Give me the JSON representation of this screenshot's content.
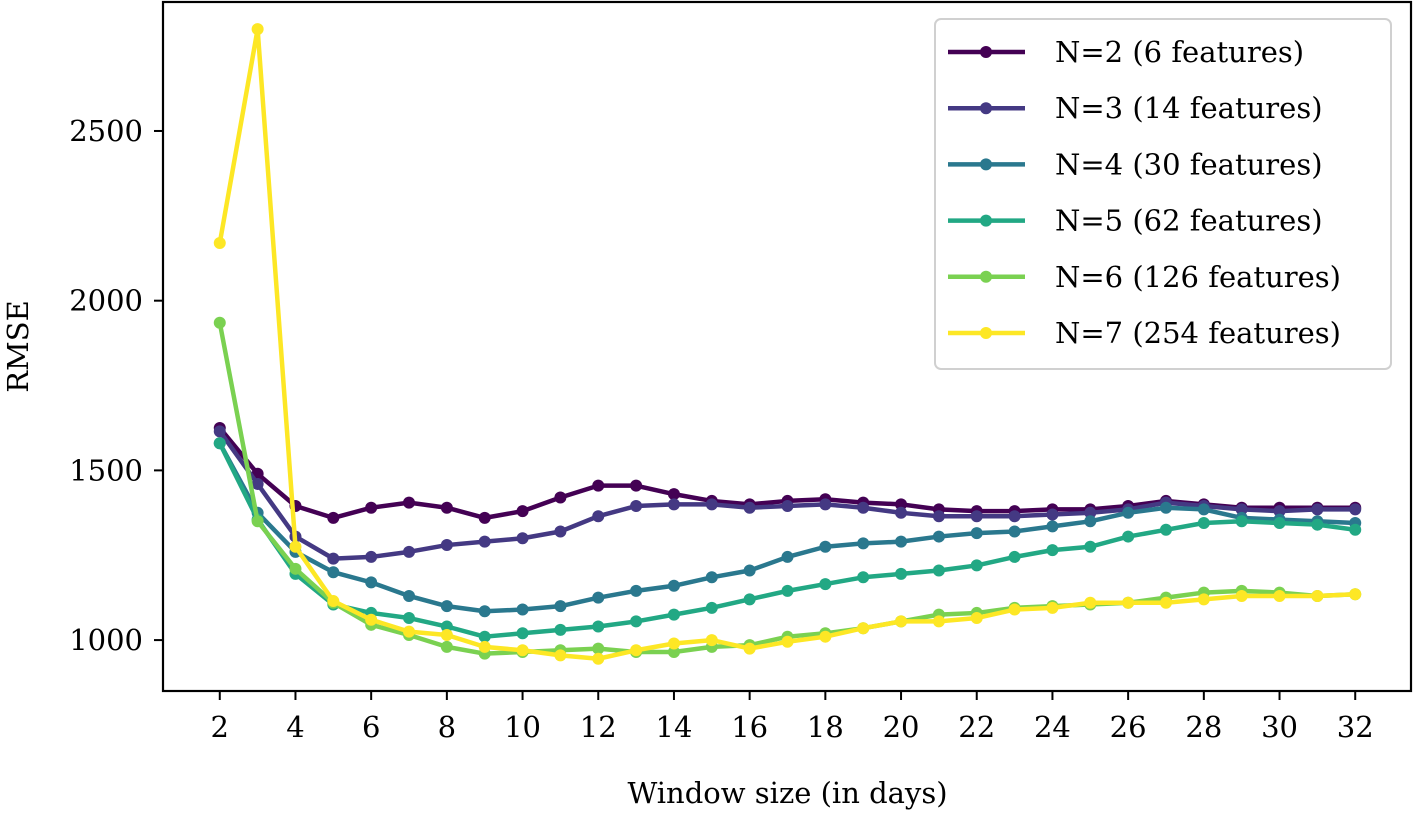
{
  "chart_data": {
    "type": "line",
    "title": "",
    "xlabel": "Window size (in days)",
    "ylabel": "RMSE",
    "x": [
      2,
      3,
      4,
      5,
      6,
      7,
      8,
      9,
      10,
      11,
      12,
      13,
      14,
      15,
      16,
      17,
      18,
      19,
      20,
      21,
      22,
      23,
      24,
      25,
      26,
      27,
      28,
      29,
      30,
      31,
      32
    ],
    "xlim": [
      0.5,
      33.5
    ],
    "ylim": [
      850,
      2880
    ],
    "xticks": [
      2,
      4,
      6,
      8,
      10,
      12,
      14,
      16,
      18,
      20,
      22,
      24,
      26,
      28,
      30,
      32
    ],
    "yticks": [
      1000,
      1500,
      2000,
      2500
    ],
    "grid": false,
    "legend_position": "top-right",
    "series": [
      {
        "name": "N=2 (6 features)",
        "color": "#440154",
        "values": [
          1625,
          1490,
          1395,
          1360,
          1390,
          1405,
          1390,
          1360,
          1380,
          1420,
          1455,
          1455,
          1430,
          1410,
          1400,
          1410,
          1415,
          1405,
          1400,
          1385,
          1380,
          1380,
          1385,
          1385,
          1395,
          1410,
          1400,
          1390,
          1390,
          1390,
          1390
        ]
      },
      {
        "name": "N=3 (14 features)",
        "color": "#443983",
        "values": [
          1615,
          1460,
          1305,
          1240,
          1245,
          1260,
          1280,
          1290,
          1300,
          1320,
          1365,
          1395,
          1400,
          1400,
          1390,
          1395,
          1400,
          1390,
          1375,
          1365,
          1365,
          1365,
          1370,
          1375,
          1385,
          1405,
          1395,
          1385,
          1380,
          1385,
          1385
        ]
      },
      {
        "name": "N=4 (30 features)",
        "color": "#21918c",
        "values": [
          1580,
          1375,
          1260,
          1200,
          1170,
          1130,
          1100,
          1085,
          1090,
          1100,
          1125,
          1145,
          1160,
          1185,
          1205,
          1245,
          1275,
          1285,
          1290,
          1305,
          1315,
          1320,
          1335,
          1350,
          1375,
          1390,
          1385,
          1360,
          1355,
          1350,
          1345
        ],
        "color_override": "#2a788e"
      },
      {
        "name": "N=5 (62 features)",
        "color": "#22a884",
        "values": [
          1580,
          1355,
          1195,
          1105,
          1080,
          1065,
          1040,
          1010,
          1020,
          1030,
          1040,
          1055,
          1075,
          1095,
          1120,
          1145,
          1165,
          1185,
          1195,
          1205,
          1220,
          1245,
          1265,
          1275,
          1305,
          1325,
          1345,
          1350,
          1345,
          1340,
          1325
        ]
      },
      {
        "name": "N=6 (126 features)",
        "color": "#7ad151",
        "values": [
          1935,
          1350,
          1210,
          1110,
          1045,
          1015,
          980,
          960,
          965,
          970,
          975,
          965,
          965,
          980,
          985,
          1010,
          1020,
          1035,
          1055,
          1075,
          1080,
          1095,
          1100,
          1105,
          1110,
          1125,
          1140,
          1145,
          1140,
          1130,
          1135
        ]
      },
      {
        "name": "N=7 (254 features)",
        "color": "#fde725",
        "values": [
          2170,
          2800,
          1275,
          1115,
          1060,
          1025,
          1015,
          980,
          970,
          955,
          945,
          970,
          990,
          1000,
          975,
          995,
          1010,
          1035,
          1055,
          1055,
          1065,
          1090,
          1095,
          1110,
          1110,
          1110,
          1120,
          1130,
          1130,
          1130,
          1135
        ]
      }
    ]
  }
}
